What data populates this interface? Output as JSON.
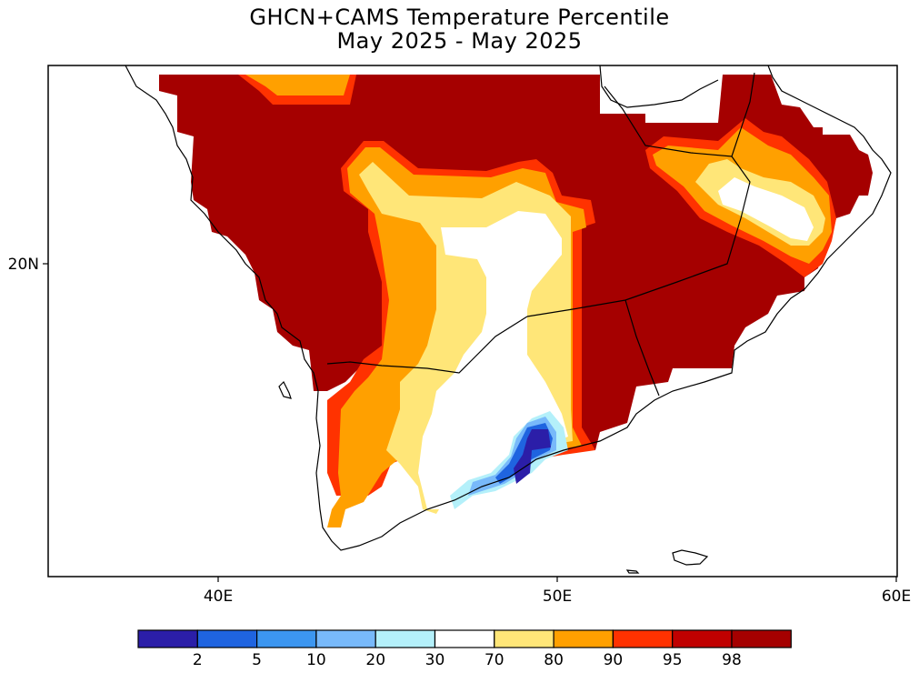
{
  "title_line1": "GHCN+CAMS Temperature Percentile",
  "title_line2": "May 2025 - May 2025",
  "lat_labels": [
    "20N"
  ],
  "lon_labels": [
    "40E",
    "50E",
    "60E"
  ],
  "legend": {
    "colors": [
      "#2b1ea8",
      "#1f64e0",
      "#3c96f0",
      "#78b9fa",
      "#b4f0fa",
      "#ffffff",
      "#ffe678",
      "#ffa000",
      "#ff3200",
      "#c00000",
      "#a50000"
    ],
    "labels": [
      "2",
      "5",
      "10",
      "20",
      "30",
      "70",
      "80",
      "90",
      "95",
      "98"
    ]
  },
  "colors": {
    "extreme_warm": "#a50000",
    "very_warm": "#ff3200",
    "warm": "#ffa000",
    "above_normal": "#ffe678",
    "near_normal": "#ffffff",
    "cool": "#b4f0fa",
    "very_cold": "#2b1ea8",
    "frame": "#000000"
  }
}
